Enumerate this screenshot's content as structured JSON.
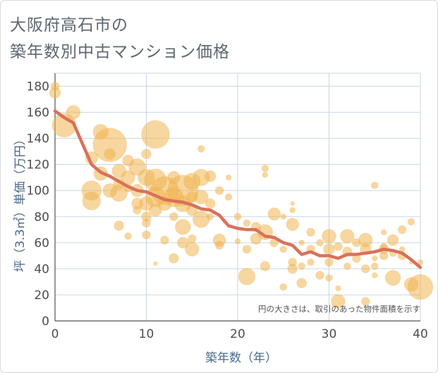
{
  "chart_data": {
    "type": "scatter",
    "title_lines": [
      "大阪府高石市の",
      "築年数別中古マンション価格"
    ],
    "xlabel": "築年数（年）",
    "ylabel": "坪（3.3㎡）単価（万円）",
    "note": "円の大きさは、取引のあった物件面積を示す",
    "xlim": [
      0,
      40
    ],
    "ylim": [
      0,
      190
    ],
    "xticks": [
      0,
      10,
      20,
      30,
      40
    ],
    "yticks": [
      0,
      20,
      40,
      60,
      80,
      100,
      120,
      140,
      160,
      180
    ],
    "grid": true,
    "colors": {
      "bubble": "#f0b550",
      "line": "#d9715a",
      "grid": "#c9d6e3"
    },
    "series": [
      {
        "kind": "bubbles",
        "points": [
          [
            0,
            180,
            6
          ],
          [
            0,
            175,
            8
          ],
          [
            1,
            150,
            17
          ],
          [
            2,
            160,
            10
          ],
          [
            4,
            125,
            9
          ],
          [
            4,
            100,
            14
          ],
          [
            4,
            92,
            13
          ],
          [
            5,
            145,
            11
          ],
          [
            5,
            113,
            10
          ],
          [
            6,
            135,
            24
          ],
          [
            6,
            128,
            8
          ],
          [
            6,
            100,
            10
          ],
          [
            7,
            115,
            10
          ],
          [
            7,
            105,
            8
          ],
          [
            7,
            98,
            12
          ],
          [
            7,
            73,
            7
          ],
          [
            8,
            123,
            8
          ],
          [
            8,
            110,
            10
          ],
          [
            8,
            102,
            6
          ],
          [
            8,
            65,
            5
          ],
          [
            9,
            118,
            12
          ],
          [
            9,
            100,
            9
          ],
          [
            9,
            90,
            8
          ],
          [
            9,
            85,
            6
          ],
          [
            10,
            128,
            7
          ],
          [
            10,
            110,
            12
          ],
          [
            10,
            90,
            10
          ],
          [
            10,
            80,
            7
          ],
          [
            10,
            75,
            6
          ],
          [
            10,
            66,
            6
          ],
          [
            11,
            143,
            20
          ],
          [
            11,
            108,
            16
          ],
          [
            11,
            95,
            14
          ],
          [
            11,
            85,
            9
          ],
          [
            11,
            44,
            3
          ],
          [
            12,
            100,
            20
          ],
          [
            12,
            90,
            10
          ],
          [
            12,
            62,
            6
          ],
          [
            13,
            110,
            9
          ],
          [
            13,
            95,
            14
          ],
          [
            13,
            80,
            6
          ],
          [
            13,
            48,
            7
          ],
          [
            14,
            100,
            22
          ],
          [
            14,
            90,
            12
          ],
          [
            14,
            72,
            11
          ],
          [
            14,
            60,
            8
          ],
          [
            15,
            107,
            12
          ],
          [
            15,
            95,
            8
          ],
          [
            15,
            85,
            8
          ],
          [
            15,
            63,
            6
          ],
          [
            15,
            55,
            10
          ],
          [
            16,
            132,
            5
          ],
          [
            16,
            110,
            12
          ],
          [
            16,
            95,
            10
          ],
          [
            16,
            78,
            12
          ],
          [
            17,
            111,
            8
          ],
          [
            17,
            90,
            7
          ],
          [
            17,
            80,
            5
          ],
          [
            18,
            100,
            6
          ],
          [
            18,
            62,
            9
          ],
          [
            18,
            58,
            6
          ],
          [
            19,
            110,
            4
          ],
          [
            19,
            95,
            5
          ],
          [
            20,
            80,
            5
          ],
          [
            20,
            61,
            4
          ],
          [
            21,
            75,
            5
          ],
          [
            21,
            55,
            6
          ],
          [
            21,
            34,
            12
          ],
          [
            22,
            72,
            7
          ],
          [
            22,
            63,
            8
          ],
          [
            23,
            117,
            5
          ],
          [
            23,
            112,
            4
          ],
          [
            23,
            68,
            11
          ],
          [
            23,
            42,
            7
          ],
          [
            24,
            82,
            9
          ],
          [
            24,
            60,
            6
          ],
          [
            25,
            80,
            4
          ],
          [
            25,
            55,
            5
          ],
          [
            25,
            26,
            5
          ],
          [
            26,
            90,
            3
          ],
          [
            26,
            85,
            4
          ],
          [
            26,
            74,
            9
          ],
          [
            26,
            45,
            6
          ],
          [
            26,
            40,
            7
          ],
          [
            27,
            60,
            4
          ],
          [
            27,
            42,
            5
          ],
          [
            27,
            29,
            7
          ],
          [
            28,
            68,
            6
          ],
          [
            28,
            55,
            6
          ],
          [
            28,
            45,
            5
          ],
          [
            29,
            60,
            5
          ],
          [
            29,
            35,
            6
          ],
          [
            30,
            65,
            10
          ],
          [
            30,
            55,
            8
          ],
          [
            30,
            45,
            6
          ],
          [
            30,
            33,
            5
          ],
          [
            31,
            57,
            6
          ],
          [
            31,
            15,
            10
          ],
          [
            31,
            25,
            4
          ],
          [
            32,
            65,
            10
          ],
          [
            32,
            53,
            7
          ],
          [
            32,
            42,
            5
          ],
          [
            33,
            60,
            6
          ],
          [
            33,
            48,
            6
          ],
          [
            34,
            62,
            10
          ],
          [
            34,
            55,
            8
          ],
          [
            34,
            40,
            6
          ],
          [
            34,
            15,
            6
          ],
          [
            35,
            104,
            5
          ],
          [
            35,
            42,
            5
          ],
          [
            35,
            48,
            4
          ],
          [
            35,
            35,
            4
          ],
          [
            36,
            57,
            5
          ],
          [
            36,
            55,
            7
          ],
          [
            36,
            50,
            6
          ],
          [
            36,
            68,
            4
          ],
          [
            37,
            62,
            8
          ],
          [
            37,
            52,
            5
          ],
          [
            37,
            33,
            11
          ],
          [
            38,
            70,
            6
          ],
          [
            38,
            55,
            4
          ],
          [
            38,
            50,
            6
          ],
          [
            39,
            76,
            5
          ],
          [
            39,
            45,
            3
          ],
          [
            39,
            28,
            10
          ],
          [
            40,
            26,
            18
          ],
          [
            40,
            45,
            4
          ]
        ]
      },
      {
        "kind": "line",
        "x": [
          0,
          1,
          2,
          3,
          4,
          5,
          6,
          7,
          8,
          9,
          10,
          11,
          12,
          13,
          14,
          15,
          16,
          17,
          18,
          19,
          20,
          21,
          22,
          23,
          24,
          25,
          26,
          27,
          28,
          29,
          30,
          31,
          32,
          33,
          34,
          35,
          36,
          37,
          38,
          39,
          40
        ],
        "y": [
          161,
          156,
          152,
          136,
          120,
          114,
          111,
          107,
          103,
          100,
          99,
          96,
          93,
          92,
          91,
          89,
          86,
          85,
          81,
          73,
          71,
          70,
          70,
          65,
          64,
          60,
          58,
          51,
          53,
          50,
          50,
          48,
          51,
          51,
          52,
          53,
          55,
          54,
          52,
          47,
          41
        ]
      }
    ]
  }
}
